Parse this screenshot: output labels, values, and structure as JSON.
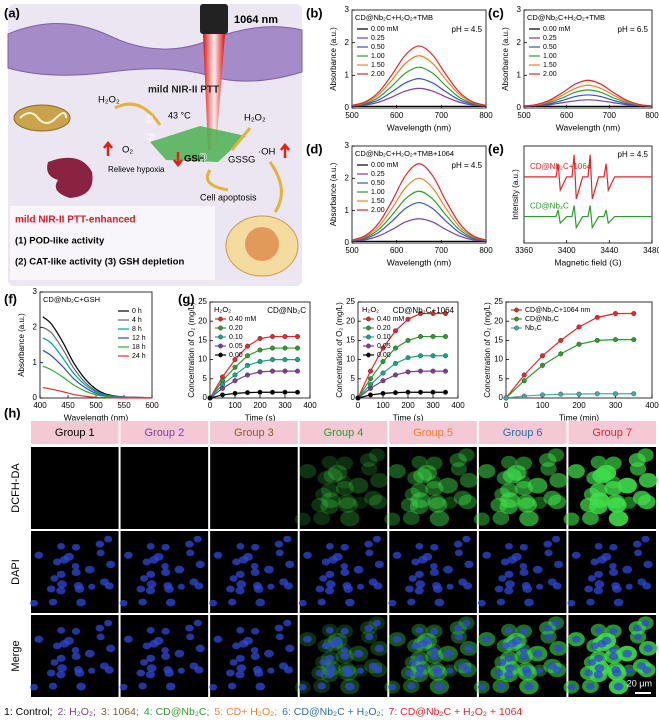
{
  "panel_labels": [
    "(a)",
    "(b)",
    "(c)",
    "(d)",
    "(e)",
    "(f)",
    "(g)",
    "(h)"
  ],
  "schematic": {
    "laser": "1064 nm",
    "ptt": "mild NIR-II PTT",
    "temperature": "43 °C",
    "h2o2_left": "H₂O₂",
    "h2o2_right": "H₂O₂",
    "o2": "O₂",
    "gsh": "GSH",
    "gssg": "GSSG",
    "oh": "·OH",
    "steps": [
      "①",
      "②",
      "③"
    ],
    "hypoxia": "Relieve hypoxia",
    "apoptosis": "Cell apoptosis",
    "box_title": "mild NIR-II PTT-enhanced",
    "box_lines": [
      "(1) POD-like activity",
      "(2) CAT-like activity (3) GSH depletion"
    ]
  },
  "chart_data": [
    {
      "type": "line",
      "title": "CD@Nb₂C+H₂O₂+TMB",
      "annotation": "pH = 4.5",
      "smooth": true,
      "legend": "upper left",
      "x": [
        500,
        530,
        560,
        590,
        620,
        650,
        680,
        710,
        740,
        770,
        800
      ],
      "series": [
        {
          "name": "0.00 mM",
          "color": "#000000",
          "values": [
            0.05,
            0.05,
            0.05,
            0.05,
            0.05,
            0.05,
            0.05,
            0.05,
            0.05,
            0.05,
            0.05
          ]
        },
        {
          "name": "0.25",
          "color": "#7b3fa0",
          "values": [
            0.06,
            0.09,
            0.18,
            0.34,
            0.52,
            0.6,
            0.52,
            0.34,
            0.18,
            0.09,
            0.06
          ]
        },
        {
          "name": "0.50",
          "color": "#3355cc",
          "values": [
            0.07,
            0.12,
            0.25,
            0.5,
            0.77,
            0.9,
            0.77,
            0.5,
            0.25,
            0.12,
            0.07
          ]
        },
        {
          "name": "1.00",
          "color": "#2ca02c",
          "values": [
            0.07,
            0.14,
            0.33,
            0.68,
            1.07,
            1.25,
            1.07,
            0.68,
            0.33,
            0.14,
            0.07
          ]
        },
        {
          "name": "1.50",
          "color": "#f07f2a",
          "values": [
            0.08,
            0.17,
            0.42,
            0.87,
            1.37,
            1.6,
            1.37,
            0.87,
            0.42,
            0.17,
            0.08
          ]
        },
        {
          "name": "2.00",
          "color": "#e0262a",
          "values": [
            0.08,
            0.19,
            0.49,
            1.03,
            1.63,
            1.9,
            1.63,
            1.03,
            0.49,
            0.19,
            0.08
          ]
        }
      ],
      "xlim": [
        500,
        800
      ],
      "xticks": [
        500,
        600,
        700,
        800
      ],
      "ylim": [
        0,
        3
      ],
      "yticks": [
        0,
        1,
        2,
        3
      ],
      "xlabel": "Wavelength (nm)",
      "ylabel": "Absorbance (a.u.)"
    },
    {
      "type": "line",
      "title": "CD@Nb₂C+H₂O₂+TMB",
      "annotation": "pH = 6.5",
      "smooth": true,
      "legend": "upper left",
      "x": [
        500,
        530,
        560,
        590,
        620,
        650,
        680,
        710,
        740,
        770,
        800
      ],
      "series": [
        {
          "name": "0.00 mM",
          "color": "#000000",
          "values": [
            0.05,
            0.05,
            0.05,
            0.05,
            0.05,
            0.05,
            0.05,
            0.05,
            0.05,
            0.05,
            0.05
          ]
        },
        {
          "name": "0.25",
          "color": "#7b3fa0",
          "values": [
            0.05,
            0.07,
            0.1,
            0.16,
            0.22,
            0.25,
            0.22,
            0.16,
            0.1,
            0.07,
            0.05
          ]
        },
        {
          "name": "0.50",
          "color": "#3355cc",
          "values": [
            0.06,
            0.08,
            0.13,
            0.23,
            0.35,
            0.4,
            0.35,
            0.23,
            0.13,
            0.08,
            0.06
          ]
        },
        {
          "name": "1.00",
          "color": "#2ca02c",
          "values": [
            0.06,
            0.09,
            0.17,
            0.31,
            0.48,
            0.55,
            0.48,
            0.31,
            0.17,
            0.09,
            0.06
          ]
        },
        {
          "name": "1.50",
          "color": "#f07f2a",
          "values": [
            0.06,
            0.1,
            0.2,
            0.39,
            0.6,
            0.7,
            0.6,
            0.39,
            0.2,
            0.1,
            0.06
          ]
        },
        {
          "name": "2.00",
          "color": "#e0262a",
          "values": [
            0.06,
            0.11,
            0.24,
            0.47,
            0.73,
            0.85,
            0.73,
            0.47,
            0.24,
            0.11,
            0.06
          ]
        }
      ],
      "xlim": [
        500,
        800
      ],
      "xticks": [
        500,
        600,
        700,
        800
      ],
      "ylim": [
        0,
        3
      ],
      "yticks": [
        0,
        1,
        2,
        3
      ],
      "xlabel": "Wavelength (nm)",
      "ylabel": "Absorbance (a.u.)"
    },
    {
      "type": "line",
      "title": "CD@Nb₂C+H₂O₂+TMB+1064",
      "annotation": "pH = 4.5",
      "smooth": true,
      "legend": "upper left",
      "x": [
        500,
        530,
        560,
        590,
        620,
        650,
        680,
        710,
        740,
        770,
        800
      ],
      "series": [
        {
          "name": "0.00 mM",
          "color": "#000000",
          "values": [
            0.05,
            0.05,
            0.05,
            0.05,
            0.05,
            0.05,
            0.05,
            0.05,
            0.05,
            0.05,
            0.05
          ]
        },
        {
          "name": "0.25",
          "color": "#7b3fa0",
          "values": [
            0.06,
            0.1,
            0.22,
            0.42,
            0.65,
            0.75,
            0.65,
            0.42,
            0.22,
            0.1,
            0.06
          ]
        },
        {
          "name": "0.50",
          "color": "#3355cc",
          "values": [
            0.07,
            0.14,
            0.33,
            0.68,
            1.07,
            1.25,
            1.07,
            0.68,
            0.33,
            0.14,
            0.07
          ]
        },
        {
          "name": "1.00",
          "color": "#2ca02c",
          "values": [
            0.08,
            0.17,
            0.42,
            0.87,
            1.37,
            1.6,
            1.37,
            0.87,
            0.42,
            0.17,
            0.08
          ]
        },
        {
          "name": "1.50",
          "color": "#f07f2a",
          "values": [
            0.09,
            0.2,
            0.51,
            1.08,
            1.71,
            2.0,
            1.71,
            1.08,
            0.51,
            0.2,
            0.09
          ]
        },
        {
          "name": "2.00",
          "color": "#e0262a",
          "values": [
            0.09,
            0.23,
            0.62,
            1.31,
            2.09,
            2.45,
            2.09,
            1.31,
            0.62,
            0.23,
            0.09
          ]
        }
      ],
      "xlim": [
        500,
        800
      ],
      "xticks": [
        500,
        600,
        700,
        800
      ],
      "ylim": [
        0,
        3
      ],
      "yticks": [
        0,
        1,
        2,
        3
      ],
      "xlabel": "Wavelength (nm)",
      "ylabel": "Absorbance (a.u.)"
    },
    {
      "type": "line",
      "annotation": "pH = 4.5",
      "smooth": false,
      "legend": "labels",
      "x": [
        3360,
        3385,
        3390,
        3392,
        3394,
        3400,
        3405,
        3407,
        3409,
        3415,
        3420,
        3422,
        3424,
        3430,
        3435,
        3437,
        3439,
        3445,
        3480
      ],
      "series": [
        {
          "name": "CD@Nb₂C+1064",
          "color": "#e0262a",
          "values": [
            5,
            5,
            5,
            8,
            2,
            5,
            5,
            10,
            0,
            5,
            5,
            10,
            0,
            5,
            5,
            8,
            2,
            5,
            5
          ]
        },
        {
          "name": "CD@Nb₂C",
          "color": "#2a9d2a",
          "values": [
            -4,
            -4,
            -4,
            -2.5,
            -5.5,
            -4,
            -4,
            -1.5,
            -6.5,
            -4,
            -4,
            -1.5,
            -6.5,
            -4,
            -4,
            -2.5,
            -5.5,
            -4,
            -4
          ]
        }
      ],
      "xlim": [
        3360,
        3480
      ],
      "xticks": [
        3360,
        3400,
        3440,
        3480
      ],
      "ylim": [
        -10,
        12
      ],
      "xlabel": "Magnetic field (G)",
      "ylabel": "Intensity (a.u.)"
    },
    {
      "type": "line",
      "title": "CD@Nb₂C+GSH",
      "smooth": true,
      "legend": "upper right",
      "x": [
        405,
        420,
        440,
        460,
        480,
        500,
        520,
        550,
        600
      ],
      "series": [
        {
          "name": "0 h",
          "color": "#000000",
          "values": [
            2.3,
            2.1,
            1.6,
            1.0,
            0.55,
            0.25,
            0.1,
            0.03,
            0.01
          ]
        },
        {
          "name": "4 h",
          "color": "#666666",
          "values": [
            2.0,
            1.85,
            1.4,
            0.85,
            0.45,
            0.2,
            0.08,
            0.03,
            0.01
          ]
        },
        {
          "name": "8 h",
          "color": "#00a0a0",
          "values": [
            1.7,
            1.55,
            1.15,
            0.7,
            0.38,
            0.17,
            0.07,
            0.02,
            0.01
          ]
        },
        {
          "name": "12 h",
          "color": "#3050c0",
          "values": [
            1.35,
            1.2,
            0.9,
            0.55,
            0.3,
            0.13,
            0.05,
            0.02,
            0.01
          ]
        },
        {
          "name": "18 h",
          "color": "#33aa33",
          "values": [
            0.9,
            0.8,
            0.6,
            0.37,
            0.2,
            0.09,
            0.04,
            0.01,
            0.01
          ]
        },
        {
          "name": "24 h",
          "color": "#e03030",
          "values": [
            0.3,
            0.25,
            0.18,
            0.1,
            0.05,
            0.02,
            0.01,
            0,
            0
          ]
        }
      ],
      "xlim": [
        400,
        600
      ],
      "xticks": [
        400,
        450,
        500,
        550,
        600
      ],
      "ylim": [
        0,
        3
      ],
      "yticks": [
        0,
        1,
        2,
        3
      ],
      "xlabel": "Wavelength (nm)",
      "ylabel": "Absorbance (a.u.)"
    },
    {
      "type": "line",
      "legend_title": "H₂O₂",
      "annotation": "CD@Nb₂C",
      "smooth": false,
      "markers": true,
      "legend": "upper left",
      "x": [
        0,
        50,
        100,
        150,
        200,
        250,
        300,
        350
      ],
      "series": [
        {
          "name": "0.40 mM",
          "color": "#e8262a",
          "values": [
            0,
            5.5,
            10,
            13.5,
            15.5,
            16,
            16,
            16
          ]
        },
        {
          "name": "0.20",
          "color": "#2a9d2a",
          "values": [
            0,
            4.5,
            8,
            11,
            12.5,
            13,
            13,
            13
          ]
        },
        {
          "name": "0.10",
          "color": "#17a589",
          "values": [
            0,
            3.5,
            6,
            8.5,
            9.5,
            10,
            10,
            10
          ]
        },
        {
          "name": "0.05",
          "color": "#7d3c98",
          "values": [
            0,
            2.5,
            4.5,
            6,
            6.8,
            7,
            7,
            7
          ]
        },
        {
          "name": "0.00",
          "color": "#000000",
          "values": [
            0,
            0.8,
            1.2,
            1.4,
            1.5,
            1.5,
            1.5,
            1.5
          ]
        }
      ],
      "xlim": [
        0,
        400
      ],
      "xticks": [
        0,
        100,
        200,
        300,
        400
      ],
      "ylim": [
        0,
        25
      ],
      "yticks": [
        0,
        5,
        10,
        15,
        20,
        25
      ],
      "xlabel": "Time (s)",
      "ylabel": "Concentration of O₂ (mg/L)"
    },
    {
      "type": "line",
      "legend_title": "H₂O₂",
      "annotation": "CD@Nb₂C+1064",
      "smooth": false,
      "markers": true,
      "legend": "upper left",
      "x": [
        0,
        50,
        100,
        150,
        200,
        250,
        300,
        350
      ],
      "series": [
        {
          "name": "0.40 mM",
          "color": "#e8262a",
          "values": [
            0,
            7,
            13,
            17.5,
            20.5,
            22,
            22,
            22
          ]
        },
        {
          "name": "0.20",
          "color": "#2a9d2a",
          "values": [
            0,
            5,
            9.5,
            13,
            15,
            16,
            16,
            16
          ]
        },
        {
          "name": "0.10",
          "color": "#17a589",
          "values": [
            0,
            3.5,
            6.5,
            9,
            10.5,
            11,
            11,
            11
          ]
        },
        {
          "name": "0.05",
          "color": "#7d3c98",
          "values": [
            0,
            2.5,
            4.5,
            6,
            6.8,
            7,
            7,
            7
          ]
        },
        {
          "name": "0.00",
          "color": "#000000",
          "values": [
            0,
            0.8,
            1.2,
            1.4,
            1.5,
            1.5,
            1.5,
            1.5
          ]
        }
      ],
      "xlim": [
        0,
        400
      ],
      "xticks": [
        0,
        100,
        200,
        300,
        400
      ],
      "ylim": [
        0,
        25
      ],
      "yticks": [
        0,
        5,
        10,
        15,
        20,
        25
      ],
      "xlabel": "Time (s)",
      "ylabel": "Concentration of O₂ (mg/L)"
    },
    {
      "type": "line",
      "smooth": false,
      "markers": true,
      "legend": "upper left",
      "x": [
        0,
        50,
        100,
        150,
        200,
        250,
        300,
        350
      ],
      "series": [
        {
          "name": "CD@Nb₂C+1064 nm",
          "color": "#e8262a",
          "values": [
            0,
            6,
            11,
            15,
            18.5,
            21,
            22,
            22
          ]
        },
        {
          "name": "CD@Nb₂C",
          "color": "#2a9d2a",
          "values": [
            0,
            4.5,
            8.5,
            11.5,
            14,
            15,
            15.2,
            15.2
          ]
        },
        {
          "name": "Nb₂C",
          "color": "#48a9a6",
          "values": [
            0,
            0.5,
            0.8,
            1,
            1,
            1.1,
            1.1,
            1.1
          ]
        }
      ],
      "xlim": [
        0,
        400
      ],
      "xticks": [
        0,
        100,
        200,
        300,
        400
      ],
      "ylim": [
        0,
        25
      ],
      "yticks": [
        0,
        5,
        10,
        15,
        20,
        25
      ],
      "xlabel": "Time (min)",
      "ylabel": "Concentration of O₂ (mg/L)"
    }
  ],
  "microscopy": {
    "groups": [
      "Group 1",
      "Group 2",
      "Group 3",
      "Group 4",
      "Group 5",
      "Group 6",
      "Group 7"
    ],
    "group_colors": [
      "#000000",
      "#7b3fa0",
      "#8a5a2b",
      "#2a9d2a",
      "#f07f2a",
      "#2a6fb0",
      "#e0262a"
    ],
    "rows": [
      "DCFH-DA",
      "DAPI",
      "Merge"
    ],
    "scale_bar": "20 μm",
    "legend": [
      "1: Control;",
      "2: H₂O₂;",
      "3: 1064;",
      "4: CD@Nb₂C;",
      "5: CD+ H₂O₂;",
      "6: CD@Nb₂C + H₂O₂;",
      "7: CD@Nb₂C + H₂O₂ + 1064"
    ]
  }
}
